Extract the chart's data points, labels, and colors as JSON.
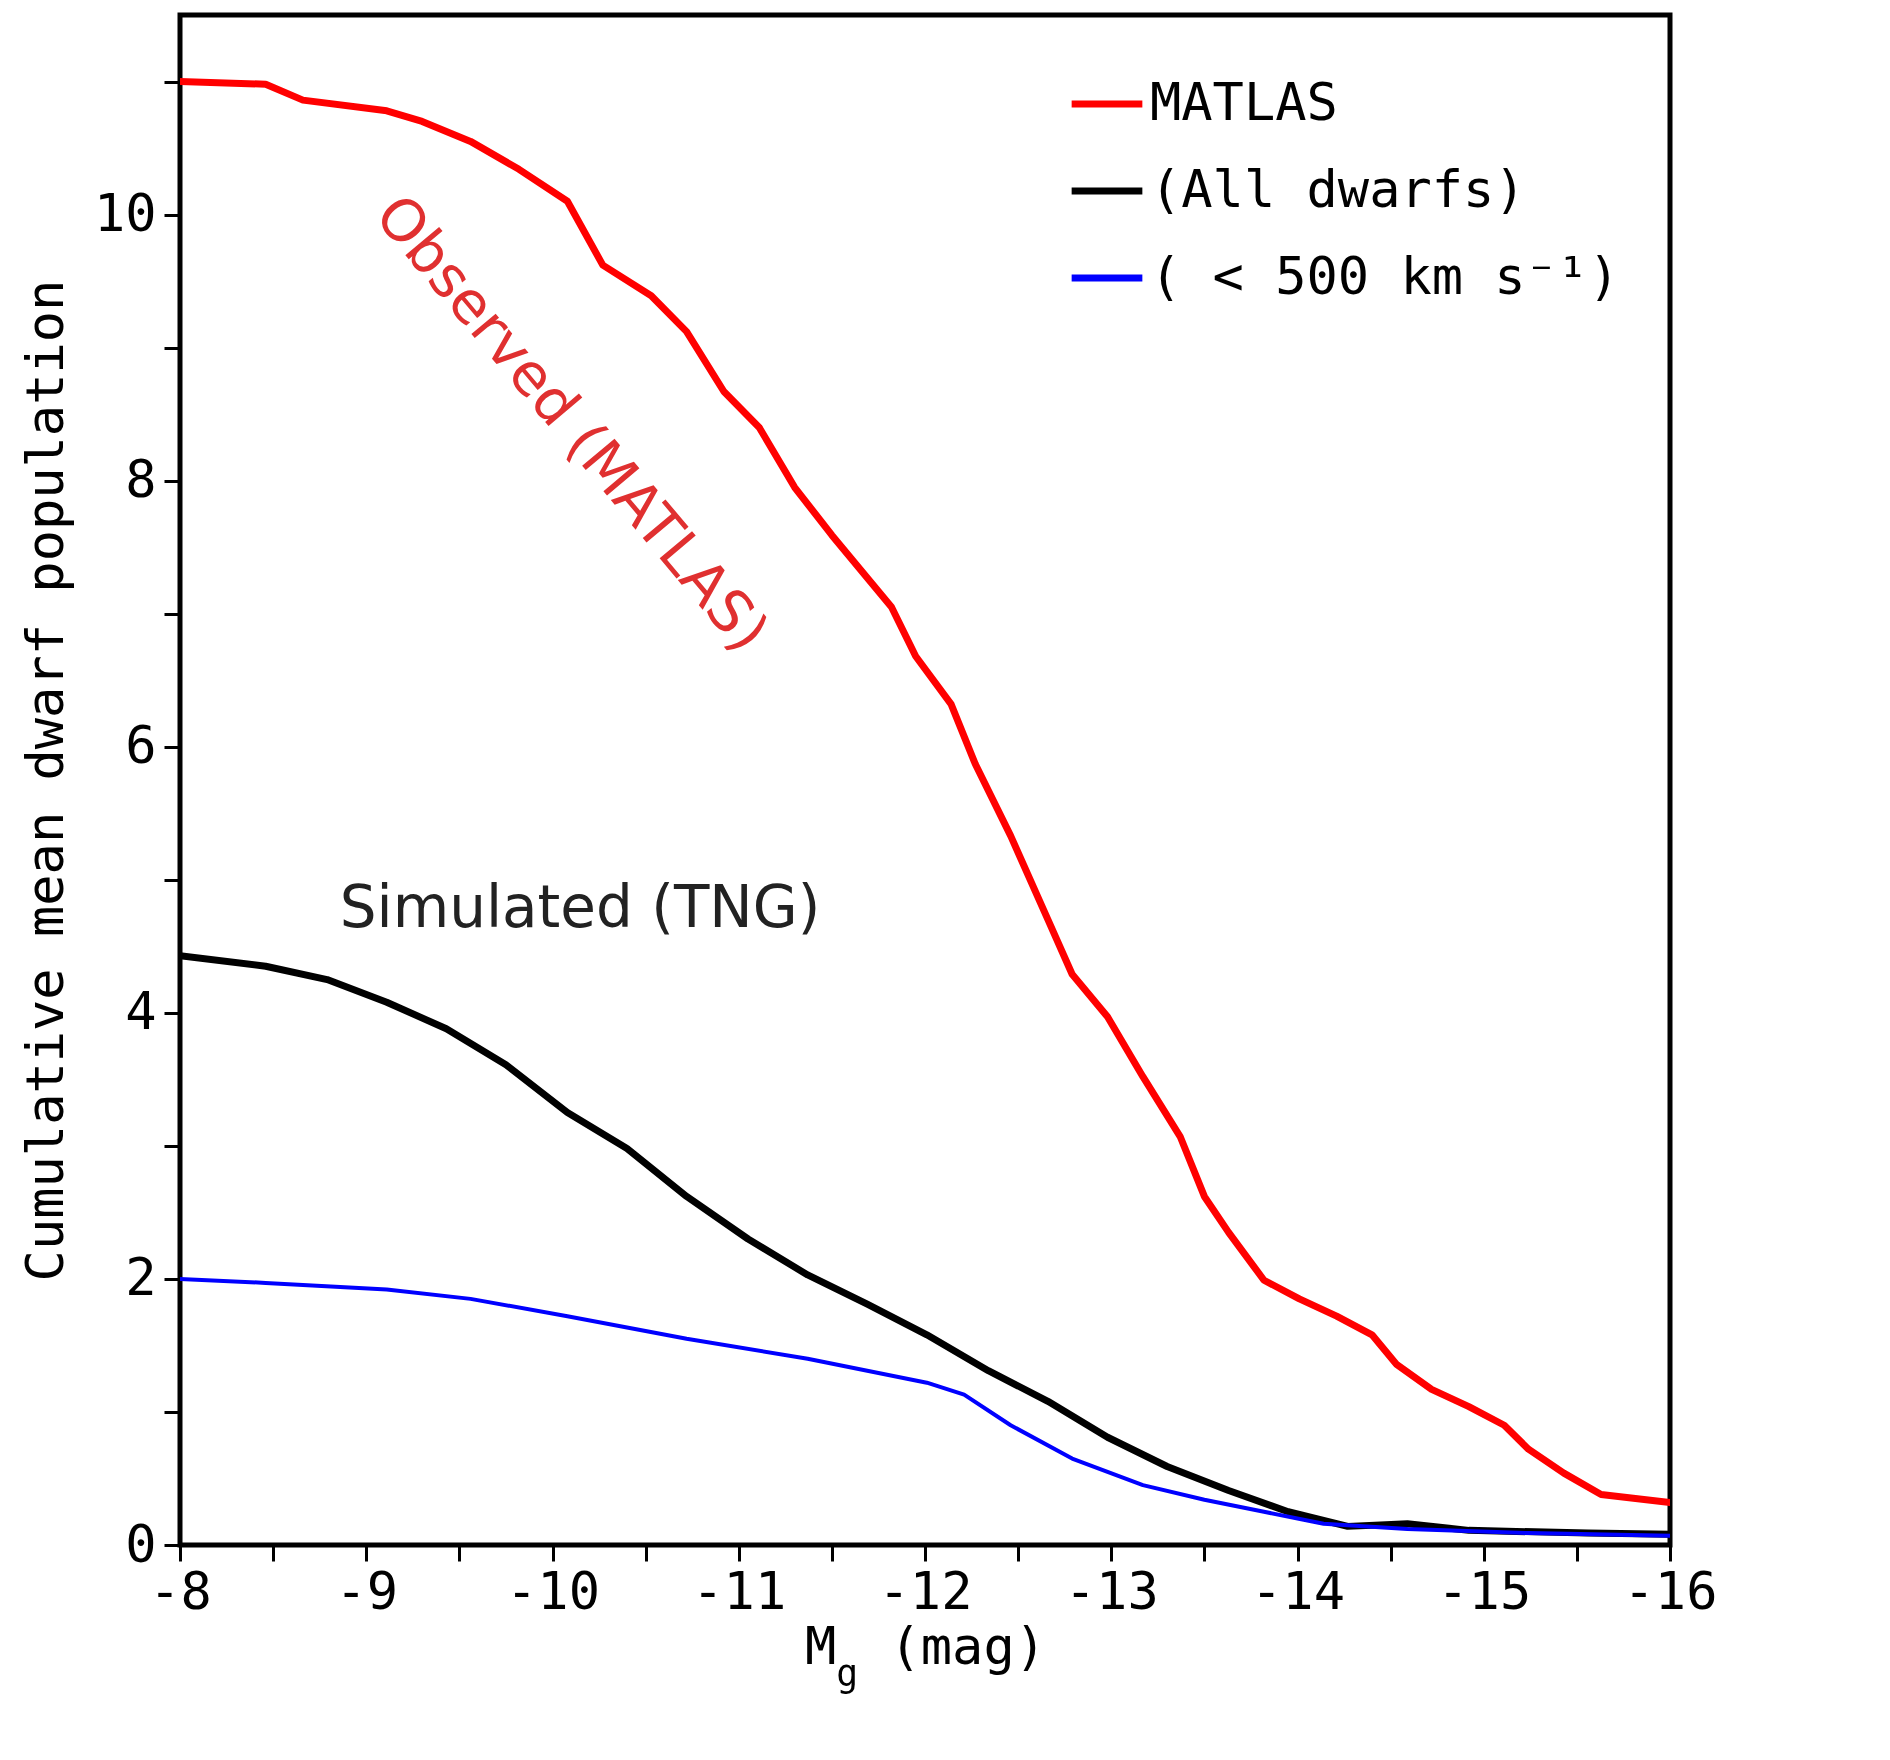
{
  "chart_data": {
    "type": "line",
    "xlabel": "M$_{g}$ (mag)",
    "ylabel": "Cumulative mean dwarf population",
    "xlim": [
      -8,
      -16
    ],
    "xticks": [
      -8,
      {
        "value": -8.5,
        "label": null
      },
      -9,
      {
        "value": -9.5,
        "label": null
      },
      -10,
      {
        "value": -10.5,
        "label": null
      },
      -11,
      {
        "value": -11.5,
        "label": null
      },
      -12,
      {
        "value": -12.5,
        "label": null
      },
      -13,
      {
        "value": -13.5,
        "label": null
      },
      -14,
      {
        "value": -14.5,
        "label": null
      },
      -15,
      {
        "value": -15.5,
        "label": null
      },
      -16
    ],
    "ylim": [
      0,
      11.5
    ],
    "yticks": [
      0,
      {
        "value": 1,
        "label": null
      },
      2,
      {
        "value": 3,
        "label": null
      },
      4,
      {
        "value": 5,
        "label": null
      },
      6,
      {
        "value": 7,
        "label": null
      },
      8,
      {
        "value": 9,
        "label": null
      },
      10,
      {
        "value": 11,
        "label": null
      }
    ],
    "legend": "top right",
    "grid": false,
    "marker": "none",
    "line_style": "solid",
    "series": [
      {
        "name": "MATLAS",
        "color": "#ff0000",
        "x": [
          -8,
          -8.46,
          -8.66,
          -9.11,
          -9.3,
          -9.56,
          -9.82,
          -10.08,
          -10.27,
          -10.53,
          -10.72,
          -10.92,
          -11.11,
          -11.3,
          -11.5,
          -11.82,
          -11.95,
          -12.14,
          -12.27,
          -12.46,
          -12.66,
          -12.79,
          -12.98,
          -13.17,
          -13.37,
          -13.5,
          -13.63,
          -13.82,
          -14.01,
          -14.21,
          -14.4,
          -14.53,
          -14.72,
          -14.92,
          -15.11,
          -15.24,
          -15.43,
          -15.63,
          -16
        ],
        "values": [
          11.0,
          10.98,
          10.86,
          10.78,
          10.7,
          10.55,
          10.34,
          10.1,
          9.62,
          9.39,
          9.12,
          8.67,
          8.4,
          7.95,
          7.59,
          7.05,
          6.68,
          6.32,
          5.87,
          5.33,
          4.7,
          4.29,
          3.97,
          3.52,
          3.07,
          2.62,
          2.35,
          1.99,
          1.85,
          1.72,
          1.58,
          1.36,
          1.17,
          1.04,
          0.9,
          0.72,
          0.54,
          0.38,
          0.32
        ]
      },
      {
        "name": "(All dwarfs)",
        "color": "#000000",
        "x": [
          -8,
          -8.46,
          -8.79,
          -9.11,
          -9.43,
          -9.75,
          -10.08,
          -10.4,
          -10.72,
          -11.05,
          -11.37,
          -11.69,
          -12.01,
          -12.34,
          -12.66,
          -12.98,
          -13.3,
          -13.63,
          -13.95,
          -14.27,
          -14.59,
          -14.92,
          -15.56,
          -16
        ],
        "values": [
          4.43,
          4.35,
          4.25,
          4.08,
          3.88,
          3.61,
          3.25,
          2.98,
          2.62,
          2.3,
          2.03,
          1.81,
          1.58,
          1.31,
          1.08,
          0.81,
          0.59,
          0.41,
          0.25,
          0.14,
          0.16,
          0.11,
          0.09,
          0.08
        ]
      },
      {
        "name": "( < 500 km s⁻¹)",
        "color": "#0000ff",
        "x": [
          -8,
          -8.46,
          -9.11,
          -9.56,
          -10.08,
          -10.72,
          -11.37,
          -12.01,
          -12.21,
          -12.46,
          -12.79,
          -13.17,
          -13.5,
          -13.82,
          -14.14,
          -14.59,
          -15.24,
          -16
        ],
        "values": [
          2.0,
          1.97,
          1.92,
          1.85,
          1.72,
          1.55,
          1.4,
          1.22,
          1.13,
          0.9,
          0.65,
          0.45,
          0.34,
          0.25,
          0.16,
          0.12,
          0.09,
          0.07
        ]
      }
    ],
    "annotations": [
      "Observed (MATLAS)",
      "Simulated (TNG)"
    ]
  }
}
